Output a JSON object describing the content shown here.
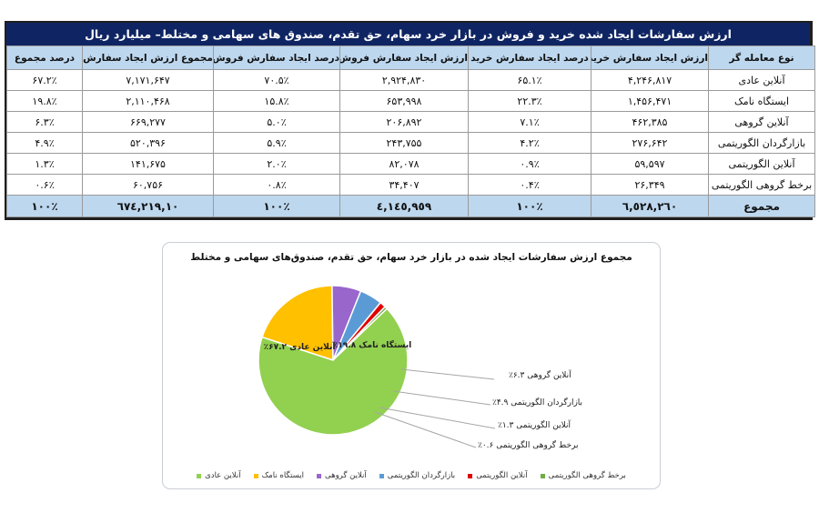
{
  "table": {
    "title": "ارزش سفارشات ایجاد شده خرید و فروش در بازار خرد سهام، حق تقدم، صندوق های سهامی و مختلط– میلیارد ریال",
    "headers": [
      "نوع معامله گر",
      "ارزش ایجاد سفارش خرید",
      "درصد ایجاد سفارش خرید",
      "ارزش ایجاد سفارش فروش",
      "درصد ایجاد سفارش فروش",
      "مجموع ارزش ایجاد سفارش",
      "درصد مجموع"
    ],
    "rows": [
      {
        "type": "آنلاین عادی",
        "buy_value": "۴,۲۴۶,۸۱۷",
        "buy_pct": "۶۵.۱٪",
        "sell_value": "۲,۹۲۴,۸۳۰",
        "sell_pct": "۷۰.۵٪",
        "total_value": "۷,۱۷۱,۶۴۷",
        "total_pct": "۶۷.۲٪"
      },
      {
        "type": "ایستگاه نامک",
        "buy_value": "۱,۴۵۶,۴۷۱",
        "buy_pct": "۲۲.۳٪",
        "sell_value": "۶۵۳,۹۹۸",
        "sell_pct": "۱۵.۸٪",
        "total_value": "۲,۱۱۰,۴۶۸",
        "total_pct": "۱۹.۸٪"
      },
      {
        "type": "آنلاین گروهی",
        "buy_value": "۴۶۲,۳۸۵",
        "buy_pct": "۷.۱٪",
        "sell_value": "۲۰۶,۸۹۲",
        "sell_pct": "۵.۰٪",
        "total_value": "۶۶۹,۲۷۷",
        "total_pct": "۶.۳٪"
      },
      {
        "type": "بازارگردان الگوریتمی",
        "buy_value": "۲۷۶,۶۴۲",
        "buy_pct": "۴.۲٪",
        "sell_value": "۲۴۳,۷۵۵",
        "sell_pct": "۵.۹٪",
        "total_value": "۵۲۰,۳۹۶",
        "total_pct": "۴.۹٪"
      },
      {
        "type": "آنلاین الگوریتمی",
        "buy_value": "۵۹,۵۹۷",
        "buy_pct": "۰.۹٪",
        "sell_value": "۸۲,۰۷۸",
        "sell_pct": "۲.۰٪",
        "total_value": "۱۴۱,۶۷۵",
        "total_pct": "۱.۳٪"
      },
      {
        "type": "برخط گروهی الگوریتمی",
        "buy_value": "۲۶,۳۴۹",
        "buy_pct": "۰.۴٪",
        "sell_value": "۳۴,۴۰۷",
        "sell_pct": "۰.۸٪",
        "total_value": "۶۰,۷۵۶",
        "total_pct": "۰.۶٪"
      }
    ],
    "total": {
      "type": "مجموع",
      "buy_value": "٦,٥٢٨,٢٦٠",
      "buy_pct": "۱۰۰٪",
      "sell_value": "٤,١٤٥,٩٥٩",
      "sell_pct": "۱۰۰٪",
      "total_value": "۱۰,٦٧٤,٢١٩",
      "total_pct": "۱۰۰٪"
    }
  },
  "chart": {
    "title": "مجموع ارزش سفارشات ایجاد شده در بازار خرد سهام، حق تقدم، صندوق‌های سهامی و مختلط",
    "inside_labels": {
      "online_normal": "آنلاین عادی ۶۷.۲٪",
      "namak": "ایستگاه نامک ۱۹.۸٪"
    },
    "callouts": [
      "آنلاین گروهی ۶.۳٪",
      "بازارگردان الگوریتمی ۴.۹٪",
      "آنلاین الگوریتمی ۱.۳٪",
      "برخط گروهی الگوریتمی ۰.۶٪"
    ],
    "legend": [
      {
        "label": "برخط گروهی الگوریتمی",
        "color": "#70ad47"
      },
      {
        "label": "آنلاین الگوریتمی",
        "color": "#e00000"
      },
      {
        "label": "بازارگردان الگوریتمی",
        "color": "#5b9bd5"
      },
      {
        "label": "آنلاین گروهی",
        "color": "#9966cc"
      },
      {
        "label": "ایستگاه نامک",
        "color": "#ffc000"
      },
      {
        "label": "آنلاین عادی",
        "color": "#92d050"
      }
    ]
  },
  "chart_data": {
    "type": "pie",
    "title": "مجموع ارزش سفارشات ایجاد شده در بازار خرد سهام، حق تقدم، صندوق‌های سهامی و مختلط",
    "categories": [
      "آنلاین عادی",
      "ایستگاه نامک",
      "آنلاین گروهی",
      "بازارگردان الگوریتمی",
      "آنلاین الگوریتمی",
      "برخط گروهی الگوریتمی"
    ],
    "values": [
      67.2,
      19.8,
      6.3,
      4.9,
      1.3,
      0.6
    ],
    "colors": [
      "#92d050",
      "#ffc000",
      "#9966cc",
      "#5b9bd5",
      "#e00000",
      "#70ad47"
    ],
    "legend_position": "bottom",
    "unit": "%"
  },
  "colors": {
    "title_bar": "#0f2563",
    "header_bg": "#bdd7ee",
    "total_bg": "#bdd7ee"
  }
}
